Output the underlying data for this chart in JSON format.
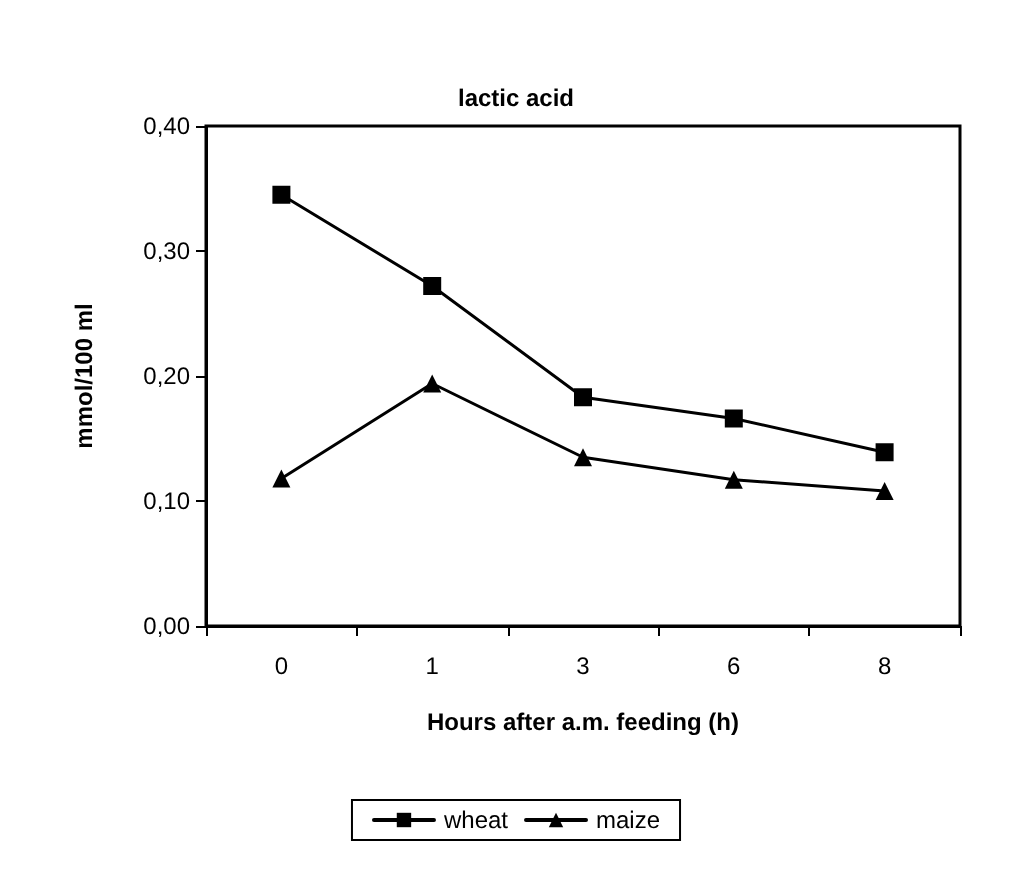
{
  "chart_data": {
    "type": "line",
    "title": "lactic acid",
    "xlabel": "Hours after a.m. feeding (h)",
    "ylabel": "mmol/100 ml",
    "categories": [
      "0",
      "1",
      "3",
      "6",
      "8"
    ],
    "series": [
      {
        "name": "wheat",
        "color": "#000000",
        "marker": "square",
        "values": [
          0.345,
          0.272,
          0.183,
          0.166,
          0.139
        ]
      },
      {
        "name": "maize",
        "color": "#000000",
        "marker": "triangle",
        "values": [
          0.118,
          0.194,
          0.135,
          0.117,
          0.108
        ]
      }
    ],
    "ylim": [
      0,
      0.4
    ],
    "yticks": [
      {
        "value": 0,
        "label": "0,00"
      },
      {
        "value": 0.1,
        "label": "0,10"
      },
      {
        "value": 0.2,
        "label": "0,20"
      },
      {
        "value": 0.3,
        "label": "0,30"
      },
      {
        "value": 0.4,
        "label": "0,40"
      }
    ],
    "grid": false,
    "legend": "bottom",
    "line_style": "solid"
  }
}
